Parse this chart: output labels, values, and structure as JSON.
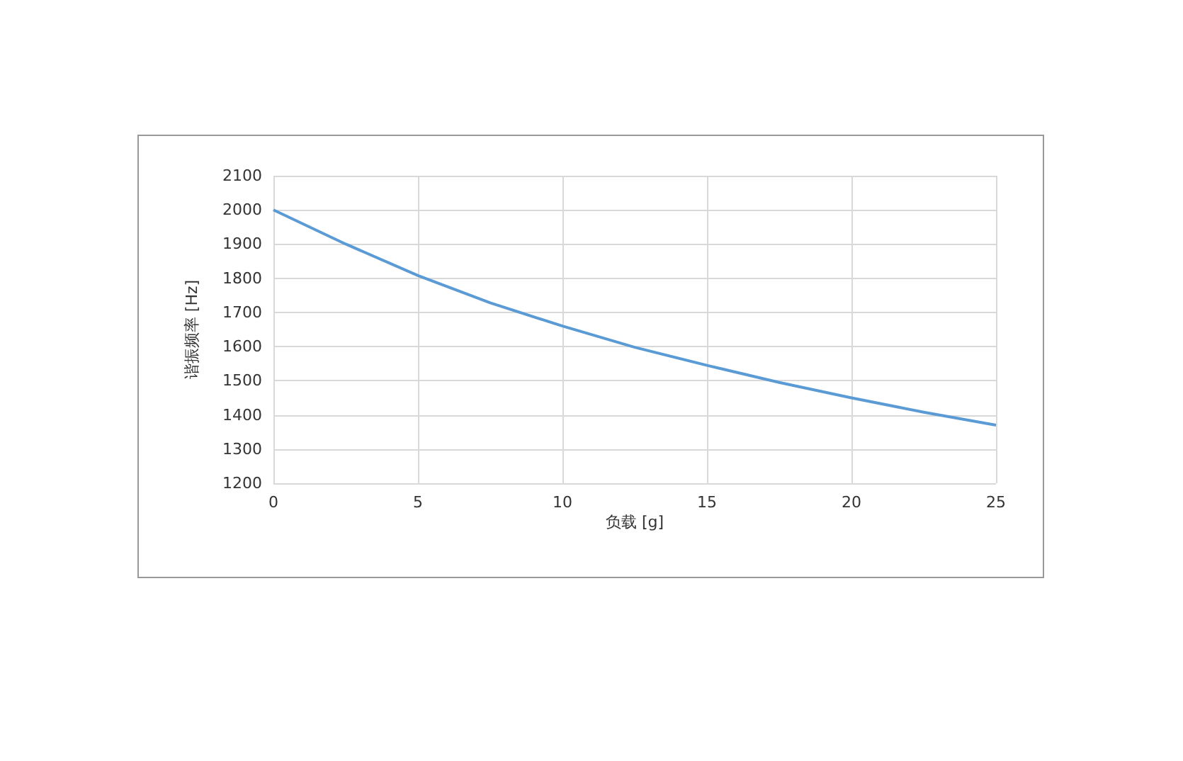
{
  "chart_data": {
    "type": "line",
    "xlabel": "负载 [g]",
    "ylabel": "谐振频率 [Hz]",
    "series": [
      {
        "color": "#5b9bd5",
        "x": [
          0,
          2.5,
          5,
          7.5,
          10,
          12.5,
          15,
          17.5,
          20,
          22.5,
          25
        ],
        "values": [
          2000,
          1900,
          1808,
          1728,
          1660,
          1598,
          1545,
          1495,
          1450,
          1408,
          1370
        ]
      }
    ],
    "xlim": [
      0,
      25
    ],
    "xticks": [
      0,
      5,
      10,
      15,
      20,
      25
    ],
    "ylim": [
      1200,
      2100
    ],
    "yticks": [
      1200,
      1300,
      1400,
      1500,
      1600,
      1700,
      1800,
      1900,
      2000,
      2100
    ],
    "grid": true,
    "marker": "none",
    "line_style": "solid"
  }
}
